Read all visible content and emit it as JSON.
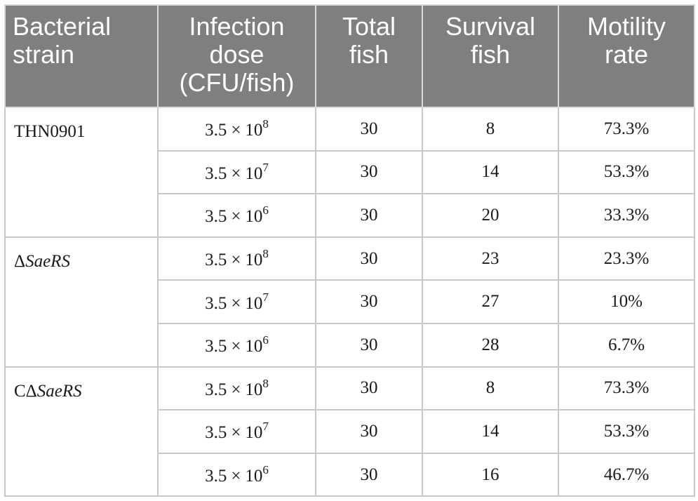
{
  "table": {
    "headers": [
      [
        "Bacterial",
        "strain"
      ],
      [
        "Infection",
        "dose",
        "(CFU/fish)"
      ],
      [
        "Total",
        "fish"
      ],
      [
        "Survival",
        "fish"
      ],
      [
        "Motility",
        "rate"
      ]
    ],
    "groups": [
      {
        "strain": {
          "prefix": "THN0901",
          "italic": ""
        },
        "rows": [
          {
            "dose_base": "3.5",
            "dose_sign": "×",
            "dose_ten": "10",
            "dose_exp": "8",
            "total": "30",
            "survival": "8",
            "motility": "73.3%"
          },
          {
            "dose_base": "3.5",
            "dose_sign": "×",
            "dose_ten": "10",
            "dose_exp": "7",
            "total": "30",
            "survival": "14",
            "motility": "53.3%"
          },
          {
            "dose_base": "3.5",
            "dose_sign": "×",
            "dose_ten": "10",
            "dose_exp": "6",
            "total": "30",
            "survival": "20",
            "motility": "33.3%"
          }
        ]
      },
      {
        "strain": {
          "prefix": "Δ",
          "italic": "SaeRS"
        },
        "rows": [
          {
            "dose_base": "3.5",
            "dose_sign": "×",
            "dose_ten": "10",
            "dose_exp": "8",
            "total": "30",
            "survival": "23",
            "motility": "23.3%"
          },
          {
            "dose_base": "3.5",
            "dose_sign": "×",
            "dose_ten": "10",
            "dose_exp": "7",
            "total": "30",
            "survival": "27",
            "motility": "10%"
          },
          {
            "dose_base": "3.5",
            "dose_sign": "×",
            "dose_ten": "10",
            "dose_exp": "6",
            "total": "30",
            "survival": "28",
            "motility": "6.7%"
          }
        ]
      },
      {
        "strain": {
          "prefix": "CΔ",
          "italic": "SaeRS"
        },
        "rows": [
          {
            "dose_base": "3.5",
            "dose_sign": "×",
            "dose_ten": "10",
            "dose_exp": "8",
            "total": "30",
            "survival": "8",
            "motility": "73.3%"
          },
          {
            "dose_base": "3.5",
            "dose_sign": "×",
            "dose_ten": "10",
            "dose_exp": "7",
            "total": "30",
            "survival": "14",
            "motility": "53.3%"
          },
          {
            "dose_base": "3.5",
            "dose_sign": "×",
            "dose_ten": "10",
            "dose_exp": "6",
            "total": "30",
            "survival": "16",
            "motility": "46.7%"
          }
        ]
      }
    ],
    "colors": {
      "header_bg": "#7f7f7f",
      "header_text": "#ffffff",
      "grid": "#c8c8c8"
    }
  }
}
